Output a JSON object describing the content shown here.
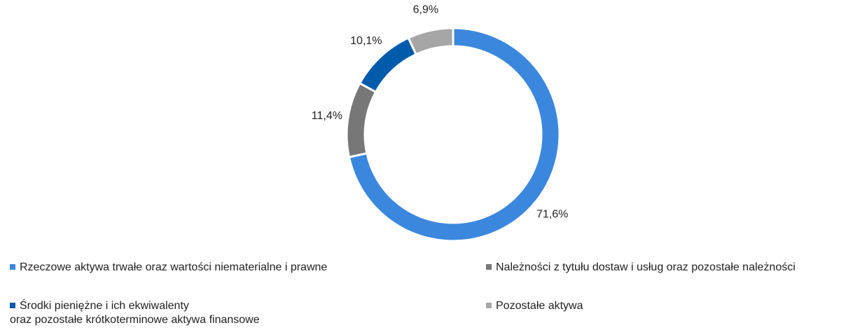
{
  "chart_data": {
    "type": "donut",
    "categories": [
      "Rzeczowe aktywa trwałe oraz wartości niematerialne i prawne",
      "Należności z tytułu dostaw i usług oraz pozostałe należności",
      "Środki pieniężne i ich ekwiwalenty\noraz pozostałe krótkoterminowe aktywa finansowe",
      "Pozostałe aktywa"
    ],
    "values": [
      71.6,
      11.4,
      10.1,
      6.9
    ],
    "value_labels": [
      "71,6%",
      "11,4%",
      "10,1%",
      "6,9%"
    ],
    "colors": [
      "#3b87dd",
      "#777777",
      "#005bab",
      "#a6a6a6"
    ],
    "legend": "bottom"
  }
}
